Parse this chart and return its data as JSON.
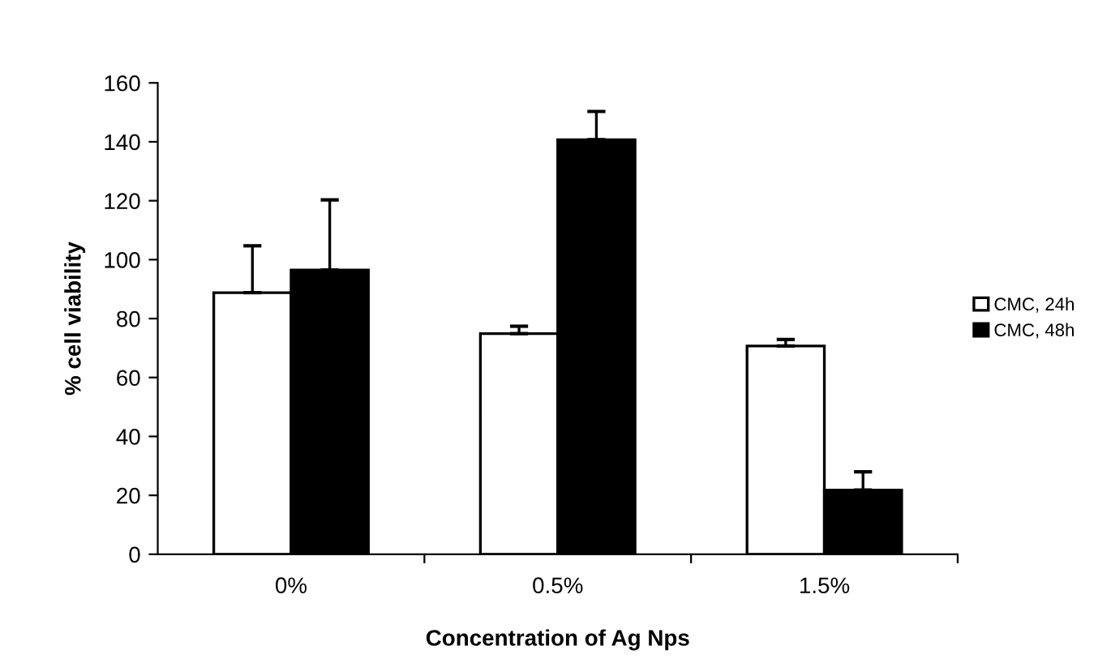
{
  "chart_data": {
    "type": "bar",
    "xlabel": "Concentration of Ag Nps",
    "ylabel": "% cell viability",
    "categories": [
      "0%",
      "0.5%",
      "1.5%"
    ],
    "series": [
      {
        "name": "CMC, 24h",
        "color": "#ffffff",
        "values": [
          88.8,
          74.9,
          70.7
        ],
        "errors": [
          [
            88.8,
            104.7
          ],
          [
            74.9,
            77.4
          ],
          [
            70.7,
            72.9
          ]
        ]
      },
      {
        "name": "CMC, 48h",
        "color": "#000000",
        "values": [
          96.5,
          140.7,
          21.8
        ],
        "errors": [
          [
            96.5,
            120.3
          ],
          [
            140.7,
            150.3
          ],
          [
            21.8,
            28.0
          ]
        ]
      }
    ],
    "ylim": [
      0,
      160
    ],
    "yticks": [
      0,
      20,
      40,
      60,
      80,
      100,
      120,
      140,
      160
    ],
    "grid": false,
    "legend": "right"
  }
}
